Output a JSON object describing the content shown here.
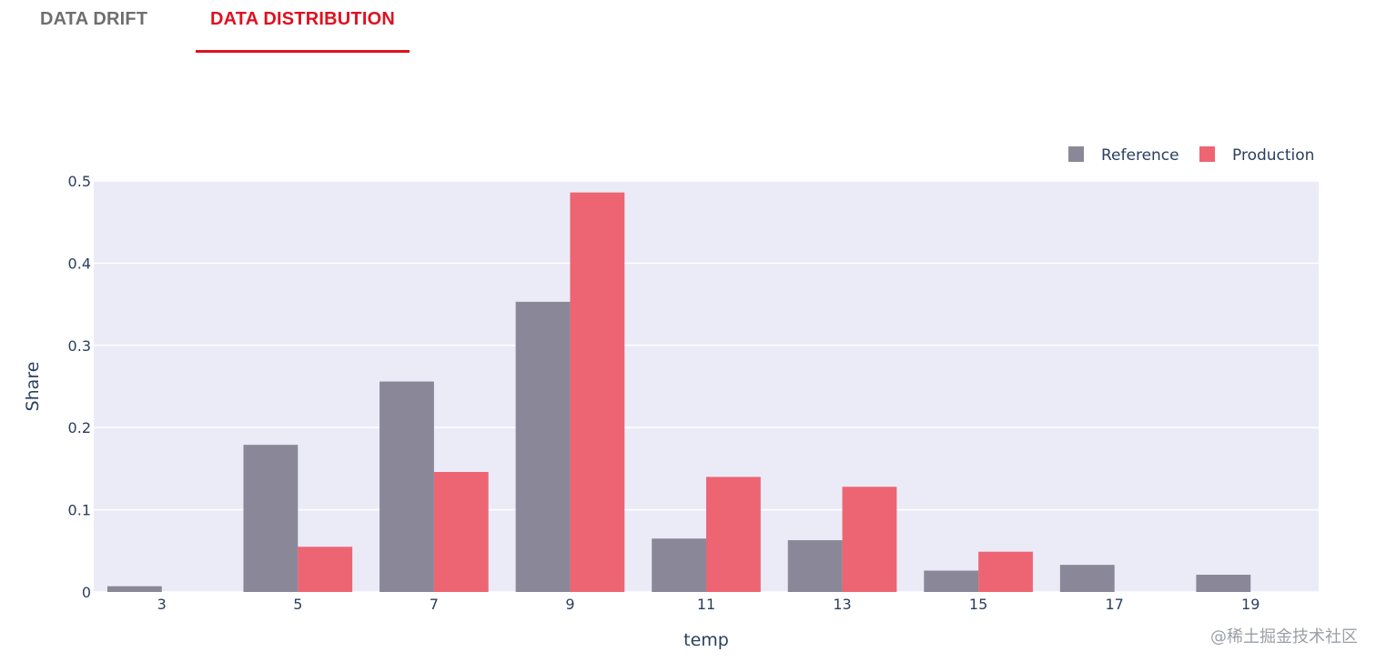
{
  "tabs": [
    {
      "label": "DATA DRIFT",
      "active": false
    },
    {
      "label": "DATA DISTRIBUTION",
      "active": true
    }
  ],
  "colors": {
    "active_tab": "#e0101f",
    "inactive_tab": "#6f6f6f",
    "plot_bg": "#ebebf8",
    "reference": "#8a8898",
    "production": "#ed6573",
    "axis_text": "#2a3f5f"
  },
  "watermark": "@稀土掘金技术社区",
  "chart_data": {
    "type": "bar",
    "xlabel": "temp",
    "ylabel": "Share",
    "ylim": [
      0,
      0.5
    ],
    "y_ticks": [
      "0",
      "0.1",
      "0.2",
      "0.3",
      "0.4",
      "0.5"
    ],
    "x_ticks": [
      "3",
      "5",
      "7",
      "9",
      "11",
      "13",
      "15",
      "17",
      "19"
    ],
    "grid": true,
    "legend_position": "top-right",
    "series": [
      {
        "name": "Reference",
        "x": [
          3,
          5,
          7,
          9,
          11,
          13,
          15,
          17,
          19
        ],
        "values": [
          0.007,
          0.179,
          0.256,
          0.353,
          0.065,
          0.063,
          0.026,
          0.033,
          0.021
        ]
      },
      {
        "name": "Production",
        "x": [
          5,
          7,
          9,
          11,
          13,
          15
        ],
        "values": [
          0.055,
          0.146,
          0.486,
          0.14,
          0.128,
          0.049
        ]
      }
    ]
  }
}
